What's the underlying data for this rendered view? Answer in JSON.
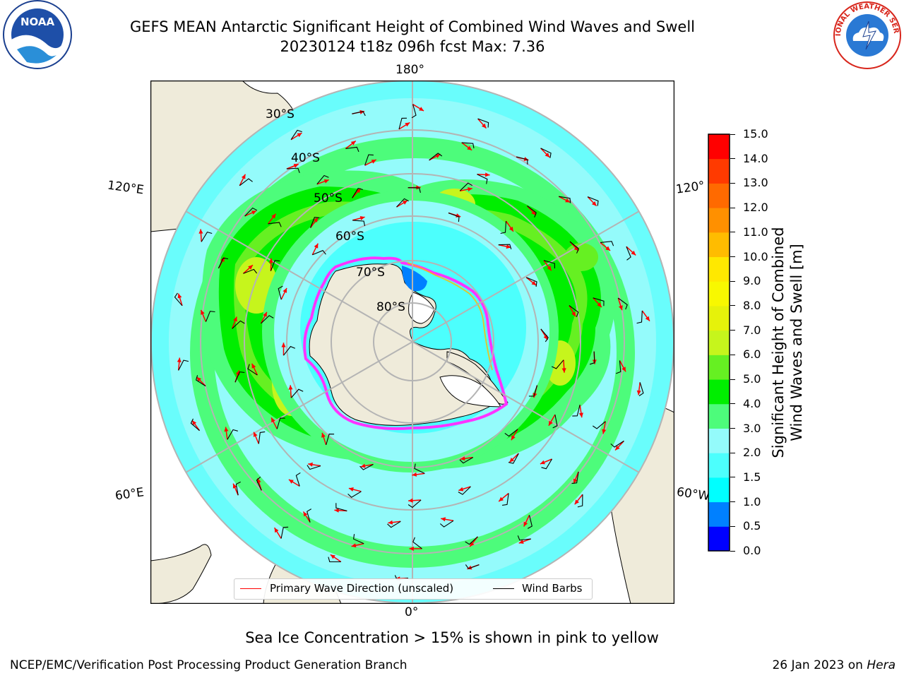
{
  "title": {
    "line1": "GEFS MEAN Antarctic Significant Height of Combined Wind Waves and Swell",
    "line2": "20230124 t18z 096h fcst   Max: 7.36"
  },
  "map": {
    "projection": "south-polar-stereographic",
    "longitude_labels": {
      "top": "180°",
      "bottom": "0°",
      "left_upper": "120°E",
      "left_lower": "60°E",
      "right_upper": "120°",
      "right_lower": "60°W"
    },
    "latitude_labels": [
      "30°S",
      "40°S",
      "50°S",
      "60°S",
      "70°S",
      "80°S"
    ],
    "colors": {
      "land": "#efebda",
      "ocean_low": "#94fbfb",
      "ice_edge": "#ff33ff",
      "arrow": "#ff0000",
      "barb": "#000000",
      "gridline": "#b4b4b4"
    }
  },
  "legend": {
    "items": [
      {
        "label": "Primary Wave Direction (unscaled)",
        "color": "#ff0000"
      },
      {
        "label": "Wind Barbs",
        "color": "#000000"
      }
    ]
  },
  "colorbar": {
    "label_line1": "Significant Height of Combined",
    "label_line2": "Wind Waves and Swell [m]",
    "ticks": [
      "0.0",
      "0.5",
      "1.0",
      "1.5",
      "2.0",
      "3.0",
      "4.0",
      "5.0",
      "6.0",
      "7.0",
      "8.0",
      "9.0",
      "10.0",
      "11.0",
      "12.0",
      "13.0",
      "14.0",
      "15.0"
    ],
    "bins": [
      {
        "from": "0.0",
        "to": "0.5",
        "color": "#0000ff"
      },
      {
        "from": "0.5",
        "to": "1.0",
        "color": "#0080ff"
      },
      {
        "from": "1.0",
        "to": "1.5",
        "color": "#00ffff"
      },
      {
        "from": "1.5",
        "to": "2.0",
        "color": "#4cfffd"
      },
      {
        "from": "2.0",
        "to": "3.0",
        "color": "#94fbfb"
      },
      {
        "from": "3.0",
        "to": "4.0",
        "color": "#4dfc7b"
      },
      {
        "from": "4.0",
        "to": "5.0",
        "color": "#00ee00"
      },
      {
        "from": "5.0",
        "to": "6.0",
        "color": "#66f022"
      },
      {
        "from": "6.0",
        "to": "7.0",
        "color": "#c6f51c"
      },
      {
        "from": "7.0",
        "to": "8.0",
        "color": "#e6f20a"
      },
      {
        "from": "8.0",
        "to": "9.0",
        "color": "#f8f800"
      },
      {
        "from": "9.0",
        "to": "10.0",
        "color": "#ffe800"
      },
      {
        "from": "10.0",
        "to": "11.0",
        "color": "#ffbc00"
      },
      {
        "from": "11.0",
        "to": "12.0",
        "color": "#ff9000"
      },
      {
        "from": "12.0",
        "to": "13.0",
        "color": "#ff6a00"
      },
      {
        "from": "13.0",
        "to": "14.0",
        "color": "#ff3a00"
      },
      {
        "from": "14.0",
        "to": "15.0",
        "color": "#ff0000"
      }
    ]
  },
  "note": "Sea Ice Concentration > 15% is shown in pink to yellow",
  "footer": {
    "left": "NCEP/EMC/Verification Post Processing Product Generation Branch",
    "date": "26 Jan 2023 on",
    "machine": "Hera"
  },
  "logos": {
    "left": "NOAA",
    "right": "NATIONAL WEATHER SERVICE"
  }
}
